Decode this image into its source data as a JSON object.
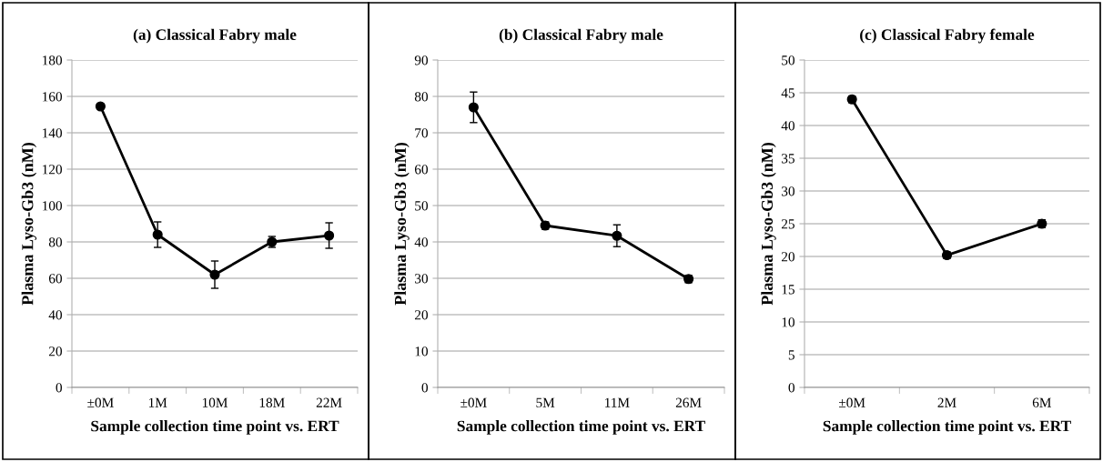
{
  "chart_data": [
    {
      "type": "line",
      "title": "(a) Classical Fabry male",
      "xlabel": "Sample collection time point vs. ERT",
      "ylabel": "Plasma Lyso-Gb3 (nM)",
      "categories": [
        "±0M",
        "1M",
        "10M",
        "18M",
        "22M"
      ],
      "series": [
        {
          "color": "#000000",
          "values": [
            154.5,
            84,
            62,
            80,
            83.5
          ],
          "errors": [
            1,
            7,
            7.5,
            3,
            7
          ]
        }
      ],
      "ylim": [
        0,
        180
      ],
      "yticks": [
        0,
        20,
        40,
        60,
        80,
        100,
        120,
        140,
        160,
        180
      ],
      "grid": "y",
      "marker": "circle",
      "line_style": "solid"
    },
    {
      "type": "line",
      "title": "(b) Classical Fabry male",
      "xlabel": "Sample collection time point vs. ERT",
      "ylabel": "Plasma Lyso-Gb3 (nM)",
      "categories": [
        "±0M",
        "5M",
        "11M",
        "26M"
      ],
      "series": [
        {
          "color": "#000000",
          "values": [
            77,
            44.5,
            41.7,
            29.8
          ],
          "errors": [
            4.2,
            1,
            3,
            1
          ]
        }
      ],
      "ylim": [
        0,
        90
      ],
      "yticks": [
        0,
        10,
        20,
        30,
        40,
        50,
        60,
        70,
        80,
        90
      ],
      "grid": "y",
      "marker": "circle",
      "line_style": "solid"
    },
    {
      "type": "line",
      "title": "(c) Classical Fabry female",
      "xlabel": "Sample collection time point vs. ERT",
      "ylabel": "Plasma Lyso-Gb3 (nM)",
      "categories": [
        "±0M",
        "2M",
        "6M"
      ],
      "series": [
        {
          "color": "#000000",
          "values": [
            44,
            20.2,
            25
          ],
          "errors": [
            0.5,
            0.5,
            0.6
          ]
        }
      ],
      "ylim": [
        0,
        50
      ],
      "yticks": [
        0,
        5,
        10,
        15,
        20,
        25,
        30,
        35,
        40,
        45,
        50
      ],
      "grid": "y",
      "marker": "circle",
      "line_style": "solid"
    }
  ]
}
